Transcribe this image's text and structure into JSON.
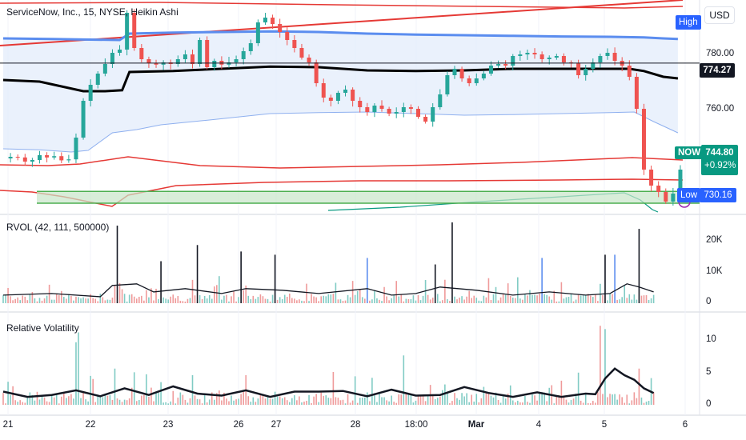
{
  "header": {
    "title": "ServiceNow, Inc., 15, NYSE, Heikin Ashi",
    "usd_button": "USD"
  },
  "price_pane": {
    "high_label": "High",
    "low_label": "Low",
    "low_value": "730.16",
    "crosshair_value": "774.27",
    "now_label": "NOW",
    "now_price": "744.80",
    "now_change": "+0.92%",
    "axis_ticks": [
      "780.00",
      "760.00"
    ],
    "colors": {
      "up": "#26a69a",
      "down": "#ef5350",
      "vwap": "#000000",
      "band_upper": "#5b8def",
      "band_fill": "#e3ecfb",
      "red_line": "#e53935",
      "support_zone": "#4caf50",
      "now_tag": "#089981",
      "low_tag": "#2962ff",
      "high_tag": "#2962ff"
    }
  },
  "rvol_pane": {
    "title": "RVOL (42, 111, 500000)",
    "axis_ticks": [
      "20K",
      "10K",
      "0"
    ]
  },
  "volatility_pane": {
    "title": "Relative Volatility",
    "axis_ticks": [
      "10",
      "5",
      "0"
    ]
  },
  "x_axis": {
    "labels": [
      "21",
      "22",
      "23",
      "26",
      "27",
      "28",
      "18:00",
      "Mar",
      "4",
      "5",
      "6"
    ]
  },
  "chart_data": [
    {
      "type": "line",
      "title": "ServiceNow, Inc., 15, NYSE, Heikin Ashi",
      "y_range": [
        728,
        794
      ],
      "x_labels": [
        "21",
        "22",
        "23",
        "26",
        "27",
        "28",
        "18:00",
        "Mar",
        "4",
        "5",
        "6"
      ],
      "series": [
        {
          "name": "price",
          "x": [
            0,
            3,
            6,
            9,
            12,
            15,
            18,
            21,
            24,
            27,
            30,
            33,
            36,
            39,
            42,
            45,
            48,
            51,
            54,
            57,
            60,
            63,
            66,
            69,
            72,
            75,
            78,
            81,
            84,
            87,
            90,
            93,
            96,
            99,
            102,
            105,
            108,
            111,
            114,
            117,
            120,
            123,
            126,
            129,
            132,
            135,
            138,
            141,
            144,
            147,
            150,
            153,
            156,
            159,
            162,
            165,
            168,
            171,
            174,
            177,
            180,
            183,
            186,
            189,
            192,
            195,
            198,
            201,
            204,
            207,
            210,
            213,
            216,
            219,
            222,
            225,
            228,
            231,
            234,
            237,
            240,
            243,
            246,
            249,
            252,
            255,
            258,
            261,
            264,
            267,
            270,
            273,
            276,
            279
          ],
          "values": [
            744.5,
            745.0,
            744.8,
            743.5,
            744.0,
            745.5,
            744.8,
            745.2,
            743.9,
            744.2,
            751.0,
            762.5,
            767.5,
            771.0,
            774.0,
            777.5,
            778.5,
            790.0,
            779.0,
            775.5,
            774.3,
            773.8,
            774.5,
            774.0,
            775.5,
            777.0,
            774.0,
            781.5,
            773.0,
            775.0,
            773.8,
            774.5,
            775.5,
            778.0,
            780.5,
            787.0,
            788.5,
            786.5,
            784.0,
            781.5,
            779.0,
            776.0,
            774.5,
            768.0,
            763.5,
            762.5,
            765.0,
            766.0,
            762.5,
            760.5,
            759.0,
            761.0,
            760.0,
            758.5,
            759.0,
            760.5,
            760.0,
            757.5,
            756.0,
            760.5,
            764.5,
            770.5,
            772.5,
            769.5,
            768.0,
            769.5,
            771.0,
            773.5,
            774.0,
            773.5,
            776.5,
            777.0,
            777.5,
            777.0,
            775.5,
            776.0,
            776.5,
            774.5,
            774.2,
            770.5,
            772.5,
            774.5,
            776.5,
            777.5,
            775.0,
            773.5,
            770.0,
            760.0,
            741.0,
            736.0,
            734.0,
            731.0,
            733.5,
            741.0
          ]
        },
        {
          "name": "vwap",
          "x": [
            0,
            15,
            33,
            42,
            49,
            52,
            70,
            90,
            110,
            130,
            150,
            170,
            190,
            210,
            230,
            250,
            258,
            264,
            272,
            278
          ],
          "values": [
            769.0,
            768.5,
            765.5,
            765.5,
            765.8,
            771.5,
            771.8,
            772.5,
            773.2,
            773.0,
            772.0,
            771.8,
            772.0,
            772.5,
            772.5,
            772.5,
            772.5,
            771.8,
            770.0,
            769.5
          ]
        },
        {
          "name": "upper_band",
          "x": [
            0,
            20,
            48,
            52,
            70,
            90,
            110,
            130,
            150,
            170,
            190,
            210,
            230,
            250,
            264,
            272,
            278
          ],
          "values": [
            782.0,
            781.8,
            781.5,
            783.5,
            783.8,
            784.0,
            784.2,
            784.0,
            783.5,
            783.2,
            783.0,
            782.8,
            782.6,
            782.5,
            782.3,
            782.0,
            781.8
          ]
        },
        {
          "name": "lower_band",
          "x": [
            0,
            15,
            28,
            35,
            45,
            55,
            65,
            85,
            110,
            130,
            150,
            170,
            190,
            210,
            230,
            250,
            260,
            268,
            278
          ],
          "values": [
            747.5,
            747.2,
            746.5,
            747.0,
            752.5,
            753.5,
            755.0,
            756.5,
            758.5,
            758.8,
            759.0,
            758.5,
            758.0,
            758.2,
            758.5,
            758.8,
            759.0,
            756.0,
            752.5
          ]
        }
      ],
      "levels": [
        {
          "name": "support_top",
          "value": 734.2
        },
        {
          "name": "support_bottom",
          "value": 730.5
        },
        {
          "name": "crosshair",
          "value": 774.27
        }
      ]
    },
    {
      "type": "bar",
      "title": "RVOL (42, 111, 500000)",
      "y_range": [
        0,
        25000
      ],
      "spikes": [
        {
          "x": 47,
          "value": 24000
        },
        {
          "x": 65,
          "value": 13000
        },
        {
          "x": 80,
          "value": 18000
        },
        {
          "x": 98,
          "value": 16000
        },
        {
          "x": 112,
          "value": 15000
        },
        {
          "x": 150,
          "value": 14000
        },
        {
          "x": 178,
          "value": 12000
        },
        {
          "x": 185,
          "value": 25000
        },
        {
          "x": 222,
          "value": 14000
        },
        {
          "x": 248,
          "value": 15000
        },
        {
          "x": 252,
          "value": 15000
        },
        {
          "x": 262,
          "value": 23000
        }
      ],
      "moving_average": {
        "x": [
          0,
          20,
          40,
          45,
          55,
          62,
          75,
          90,
          100,
          115,
          130,
          150,
          160,
          170,
          180,
          195,
          210,
          225,
          240,
          250,
          257,
          262,
          268
        ],
        "values": [
          2500,
          3000,
          2000,
          5500,
          6000,
          3500,
          4500,
          3000,
          4500,
          4000,
          3000,
          4500,
          2500,
          3000,
          5000,
          4000,
          2500,
          3500,
          2500,
          3000,
          6000,
          5000,
          3500
        ]
      }
    },
    {
      "type": "bar",
      "title": "Relative Volatility",
      "y_range": [
        0,
        13
      ],
      "spikes": [
        {
          "x": 2,
          "value": 3.5
        },
        {
          "x": 30,
          "value": 9.5
        },
        {
          "x": 31,
          "value": 11.0
        },
        {
          "x": 46,
          "value": 5.5
        },
        {
          "x": 100,
          "value": 4.5
        },
        {
          "x": 165,
          "value": 7.5
        },
        {
          "x": 246,
          "value": 12.0
        },
        {
          "x": 248,
          "value": 11.5
        },
        {
          "x": 262,
          "value": 5.5
        }
      ],
      "line": {
        "x": [
          0,
          10,
          20,
          30,
          40,
          50,
          60,
          70,
          80,
          90,
          100,
          110,
          120,
          130,
          140,
          150,
          160,
          170,
          180,
          190,
          200,
          210,
          220,
          230,
          240,
          244,
          248,
          252,
          256,
          260,
          264,
          268
        ],
        "values": [
          2.0,
          1.2,
          1.5,
          2.2,
          1.3,
          2.5,
          1.5,
          2.8,
          1.7,
          1.4,
          2.2,
          1.2,
          2.0,
          2.0,
          2.1,
          1.3,
          2.3,
          1.4,
          1.5,
          2.7,
          1.8,
          1.2,
          1.9,
          1.2,
          1.7,
          1.6,
          4.0,
          5.5,
          4.5,
          3.8,
          2.5,
          1.8
        ]
      }
    }
  ]
}
